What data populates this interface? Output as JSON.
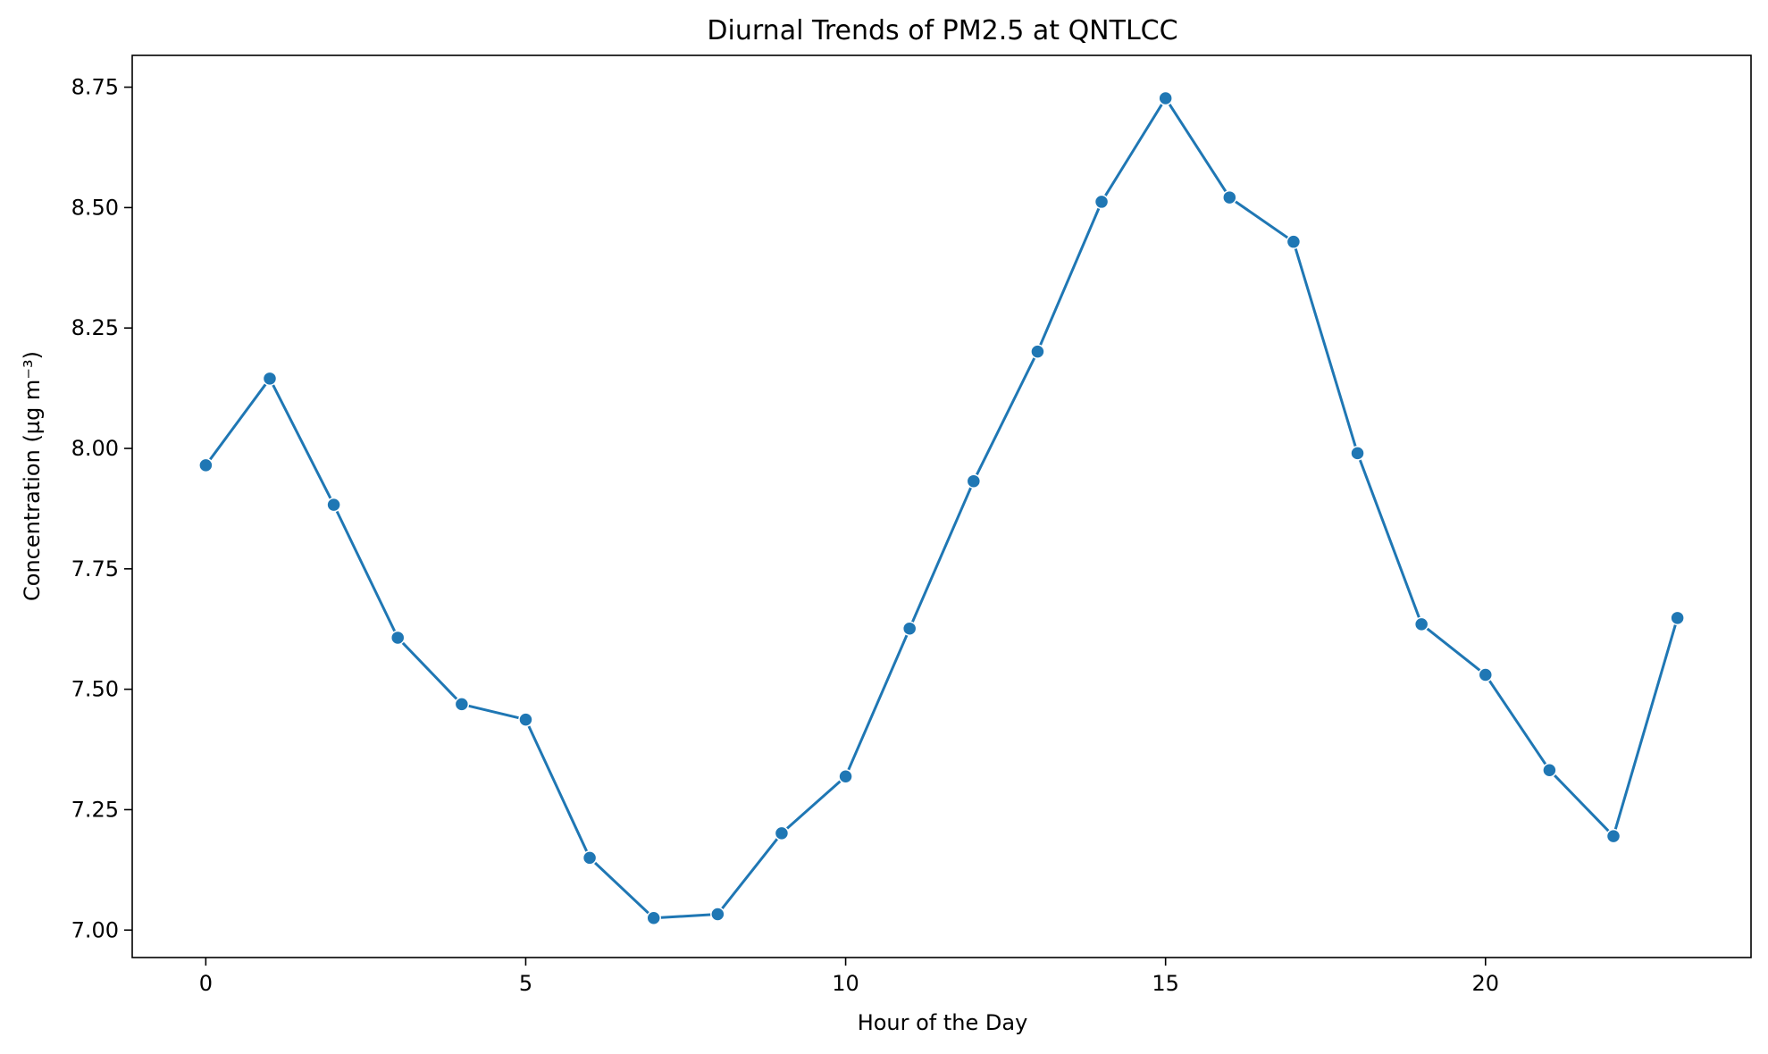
{
  "chart_data": {
    "type": "line",
    "title": "Diurnal Trends of PM2.5 at QNTLCC",
    "xlabel": "Hour of the Day",
    "ylabel": "Concentration (µg m⁻³)",
    "x": [
      0,
      1,
      2,
      3,
      4,
      5,
      6,
      7,
      8,
      9,
      10,
      11,
      12,
      13,
      14,
      15,
      16,
      17,
      18,
      19,
      20,
      21,
      22,
      23
    ],
    "series": [
      {
        "values": [
          7.965,
          8.145,
          7.883,
          7.607,
          7.469,
          7.437,
          7.15,
          7.025,
          7.033,
          7.201,
          7.319,
          7.626,
          7.932,
          8.201,
          8.512,
          8.727,
          8.521,
          8.429,
          7.99,
          7.635,
          7.53,
          7.332,
          7.195,
          7.648
        ],
        "color": "#1f77b4"
      }
    ],
    "xlim": [
      -1.15,
      24.15
    ],
    "ylim": [
      6.943,
      8.816
    ],
    "xticks": [
      0,
      5,
      10,
      15,
      20
    ],
    "yticks": [
      7.0,
      7.25,
      7.5,
      7.75,
      8.0,
      8.25,
      8.5,
      8.75
    ],
    "xtick_labels": [
      "0",
      "5",
      "10",
      "15",
      "20"
    ],
    "ytick_labels": [
      "7.00",
      "7.25",
      "7.50",
      "7.75",
      "8.00",
      "8.25",
      "8.50",
      "8.75"
    ],
    "grid": false,
    "marker": "circle"
  }
}
